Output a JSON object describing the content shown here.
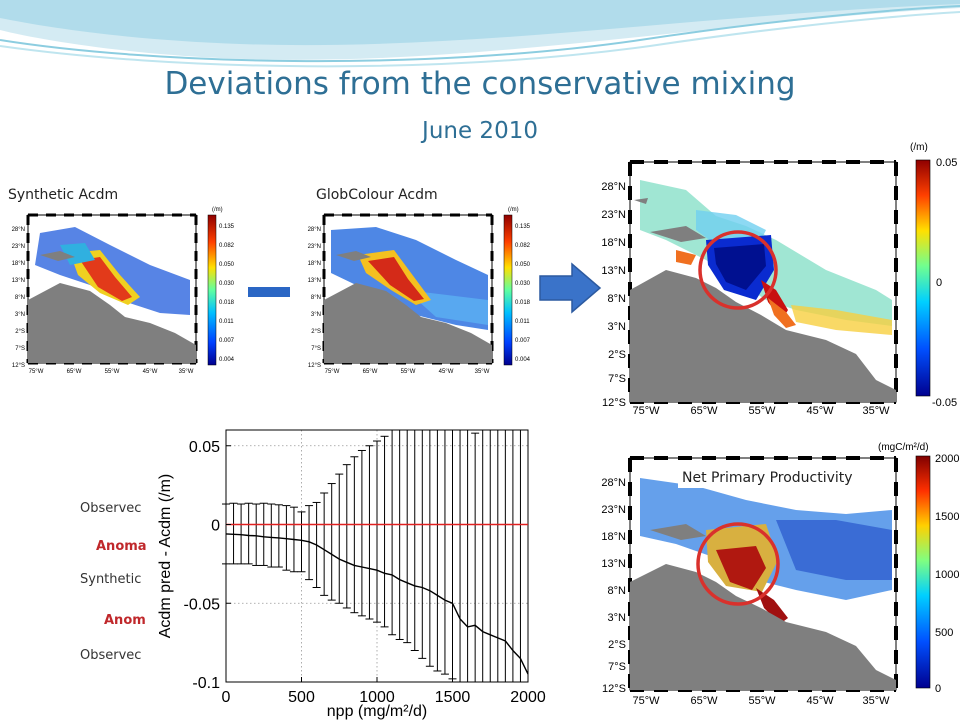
{
  "slide": {
    "title": "Deviations from the conservative mixing",
    "subtitle": "June 2010"
  },
  "left_map": {
    "label": "Synthetic Acdm",
    "colorbar_unit": "(/m)",
    "colorbar_ticks": [
      "0.135",
      "0.082",
      "0.050",
      "0.030",
      "0.018",
      "0.011",
      "0.007",
      "0.004"
    ],
    "lat_ticks": [
      "28°N",
      "23°N",
      "18°N",
      "13°N",
      "8°N",
      "3°N",
      "2°S",
      "7°S",
      "12°S"
    ],
    "lon_ticks": [
      "75°W",
      "65°W",
      "55°W",
      "45°W",
      "35°W"
    ]
  },
  "center_map": {
    "label": "GlobColour Acdm",
    "colorbar_unit": "(/m)",
    "colorbar_ticks": [
      "0.135",
      "0.082",
      "0.050",
      "0.030",
      "0.018",
      "0.011",
      "0.007",
      "0.004"
    ],
    "lat_ticks": [
      "28°N",
      "23°N",
      "18°N",
      "13°N",
      "8°N",
      "3°N",
      "2°S",
      "7°S",
      "12°S"
    ],
    "lon_ticks": [
      "75°W",
      "65°W",
      "55°W",
      "45°W",
      "35°W"
    ]
  },
  "diff_map": {
    "colorbar_unit": "(/m)",
    "colorbar_ticks": [
      "0.05",
      "0",
      "-0.05"
    ],
    "lat_ticks": [
      "28°N",
      "23°N",
      "18°N",
      "13°N",
      "8°N",
      "3°N",
      "2°S",
      "7°S",
      "12°S"
    ],
    "lon_ticks": [
      "75°W",
      "65°W",
      "55°W",
      "45°W",
      "35°W"
    ]
  },
  "npp_map": {
    "label": "Net Primary Productivity",
    "colorbar_unit": "(mgC/m²/d)",
    "colorbar_ticks": [
      "2000",
      "1500",
      "1000",
      "500",
      "0"
    ],
    "lat_ticks": [
      "28°N",
      "23°N",
      "18°N",
      "13°N",
      "8°N",
      "3°N",
      "2°S",
      "7°S",
      "12°S"
    ],
    "lon_ticks": [
      "75°W",
      "65°W",
      "55°W",
      "45°W",
      "35°W"
    ]
  },
  "partial_text": {
    "observed_1": "Observec",
    "anomaly_1": "Anoma",
    "synthetic": "Synthetic",
    "anomaly_2": "Anom",
    "observed_2": "Observec"
  },
  "colors": {
    "title": "#2e6f95",
    "anomaly_text": "#c0282b",
    "circle": "#d9312c",
    "land": "#7f7f7f",
    "arrow": "#3a73c9",
    "minus": "#2a66c4"
  },
  "chart_data": {
    "type": "line",
    "xlabel": "npp (mg/m²/d)",
    "ylabel": "Acdm pred - Acdm (/m)",
    "xlim": [
      0,
      2000
    ],
    "ylim": [
      -0.1,
      0.06
    ],
    "xticks": [
      "0",
      "500",
      "1000",
      "1500",
      "2000"
    ],
    "yticks": [
      "0.05",
      "0",
      "-0.05",
      "-0.1"
    ],
    "grid": "dotted",
    "reference_line": {
      "y": 0,
      "color": "#e02020"
    },
    "series": [
      {
        "x": [
          0,
          50,
          100,
          150,
          200,
          250,
          300,
          350,
          400,
          450,
          500,
          550,
          600,
          650,
          700,
          750,
          800,
          850,
          900,
          950,
          1000,
          1050,
          1100,
          1150,
          1200,
          1250,
          1300,
          1350,
          1400,
          1450,
          1500,
          1550,
          1600,
          1650,
          1700,
          1750,
          1800,
          1850,
          1900,
          1950,
          2000
        ],
        "y": [
          -0.006,
          -0.0062,
          -0.0065,
          -0.007,
          -0.0072,
          -0.0078,
          -0.0082,
          -0.0085,
          -0.009,
          -0.0095,
          -0.01,
          -0.011,
          -0.013,
          -0.016,
          -0.019,
          -0.022,
          -0.024,
          -0.026,
          -0.027,
          -0.028,
          -0.029,
          -0.031,
          -0.032,
          -0.035,
          -0.037,
          -0.039,
          -0.04,
          -0.042,
          -0.045,
          -0.048,
          -0.05,
          -0.06,
          -0.065,
          -0.064,
          -0.068,
          -0.07,
          -0.072,
          -0.074,
          -0.08,
          -0.085,
          -0.095
        ],
        "err_top": [
          0.013,
          0.0135,
          0.013,
          0.0135,
          0.013,
          0.0135,
          0.013,
          0.0125,
          0.012,
          0.011,
          0.008,
          0.012,
          0.014,
          0.02,
          0.026,
          0.032,
          0.038,
          0.043,
          0.047,
          0.05,
          0.053,
          0.056,
          0.06,
          0.06,
          0.06,
          0.06,
          0.06,
          0.06,
          0.06,
          0.06,
          0.06,
          0.06,
          0.06,
          0.058,
          0.06,
          0.06,
          0.06,
          0.06,
          0.06,
          0.06,
          0.06
        ],
        "err_bottom": [
          -0.025,
          -0.025,
          -0.025,
          -0.025,
          -0.026,
          -0.026,
          -0.027,
          -0.027,
          -0.029,
          -0.03,
          -0.03,
          -0.035,
          -0.04,
          -0.045,
          -0.048,
          -0.05,
          -0.053,
          -0.056,
          -0.058,
          -0.06,
          -0.062,
          -0.065,
          -0.07,
          -0.073,
          -0.075,
          -0.08,
          -0.085,
          -0.09,
          -0.093,
          -0.095,
          -0.098,
          -0.1,
          -0.1,
          -0.1,
          -0.1,
          -0.1,
          -0.1,
          -0.1,
          -0.1,
          -0.1,
          -0.1
        ]
      }
    ]
  }
}
